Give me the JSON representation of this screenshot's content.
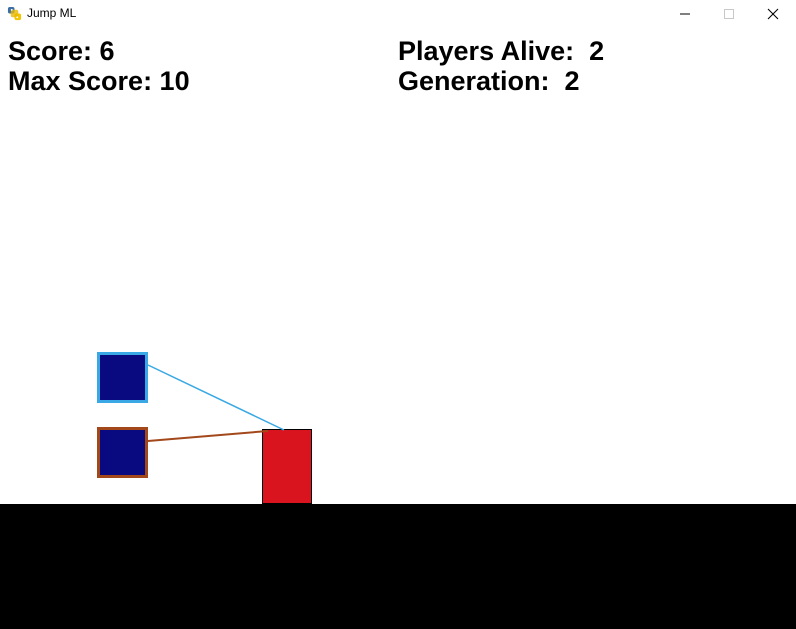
{
  "window": {
    "title": "Jump ML",
    "icon": "python-icon",
    "controls": [
      "minimize-icon",
      "maximize-icon",
      "close-icon"
    ]
  },
  "hud": {
    "score_text": "Score: 6",
    "max_score_text": "Max Score: 10",
    "players_alive_text": "Players Alive:  2",
    "generation_text": "Generation:  2"
  },
  "game": {
    "score": 6,
    "max_score": 10,
    "players_alive": 2,
    "generation": 2
  },
  "colors": {
    "ground": "#000000",
    "obstacle": "#d9141e",
    "player_fill": "#0a0a80",
    "player_1_outline": "#3aa8e4",
    "player_2_outline": "#a3481a"
  }
}
